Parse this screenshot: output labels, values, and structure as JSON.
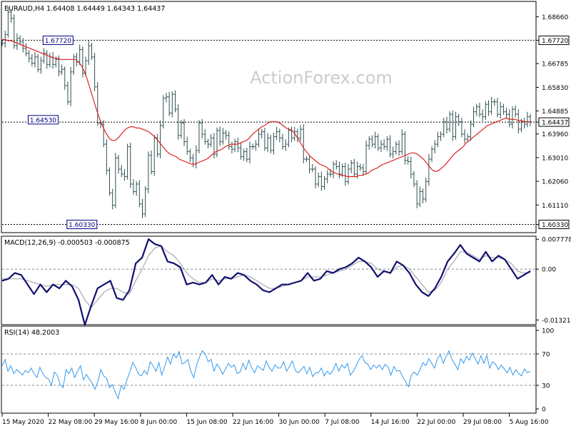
{
  "chart_data": [
    {
      "panel": "price",
      "type": "line",
      "title": "EURAUD,H4  1.64408 1.64449 1.64343 1.64437",
      "watermark": "ActionForex.com",
      "ylim": [
        1.6003,
        1.6925
      ],
      "y_ticks": [
        "1.68660",
        "1.67720",
        "1.66785",
        "1.65830",
        "1.64885",
        "1.64437",
        "1.63960",
        "1.63010",
        "1.62060",
        "1.61110",
        "1.60330"
      ],
      "highlight_ticks": [
        "1.67720",
        "1.64437",
        "1.60330"
      ],
      "levels": [
        {
          "label": "1.67720",
          "value": 1.6772,
          "style": "dotted"
        },
        {
          "label": "1.60330",
          "value": 1.6033,
          "style": "dotted"
        },
        {
          "label": "1.64437",
          "value": 1.64437,
          "style": "dotted"
        }
      ],
      "annotations": [
        {
          "label": "1.67720",
          "value": 1.6772,
          "bar_index": 24
        },
        {
          "label": "1.64530",
          "value": 1.6453,
          "bar_index": 19
        },
        {
          "label": "1.60330",
          "value": 1.6033,
          "bar_index": 32
        }
      ],
      "series": [
        {
          "kind": "close",
          "values": [
            1.676,
            1.6795,
            1.6885,
            1.686,
            1.675,
            1.678,
            1.6765,
            1.674,
            1.672,
            1.67,
            1.668,
            1.6705,
            1.6655,
            1.669,
            1.672,
            1.6675,
            1.6705,
            1.6675,
            1.6695,
            1.6645,
            1.6655,
            1.659,
            1.6525,
            1.6645,
            1.6705,
            1.6685,
            1.6735,
            1.664,
            1.669,
            1.675,
            1.6705,
            1.6585,
            1.644,
            1.6435,
            1.6355,
            1.625,
            1.616,
            1.611,
            1.63,
            1.6255,
            1.6235,
            1.6225,
            1.6345,
            1.6195,
            1.6165,
            1.6195,
            1.6115,
            1.6075,
            1.6175,
            1.631,
            1.6245,
            1.638,
            1.6315,
            1.643,
            1.654,
            1.6545,
            1.648,
            1.6555,
            1.6495,
            1.639,
            1.644,
            1.6365,
            1.6325,
            1.63,
            1.6275,
            1.633,
            1.644,
            1.6395,
            1.6365,
            1.6355,
            1.638,
            1.6315,
            1.641,
            1.6365,
            1.64,
            1.639,
            1.6345,
            1.6335,
            1.6365,
            1.634,
            1.6305,
            1.6325,
            1.6295,
            1.6345,
            1.6345,
            1.6355,
            1.6395,
            1.6405,
            1.634,
            1.638,
            1.633,
            1.6385,
            1.6405,
            1.638,
            1.6345,
            1.6355,
            1.641,
            1.638,
            1.6405,
            1.638,
            1.6415,
            1.6295,
            1.6295,
            1.6255,
            1.6255,
            1.6195,
            1.6225,
            1.6185,
            1.6215,
            1.6235,
            1.6235,
            1.6275,
            1.6265,
            1.6235,
            1.6265,
            1.6205,
            1.6255,
            1.628,
            1.6235,
            1.6265,
            1.626,
            1.6245,
            1.635,
            1.6375,
            1.6355,
            1.6385,
            1.634,
            1.6355,
            1.6345,
            1.6375,
            1.6315,
            1.6325,
            1.6355,
            1.6325,
            1.6395,
            1.629,
            1.6285,
            1.6235,
            1.6195,
            1.6115,
            1.6165,
            1.6135,
            1.6205,
            1.6295,
            1.6335,
            1.6355,
            1.6385,
            1.6395,
            1.6445,
            1.6415,
            1.6475,
            1.6385,
            1.6465,
            1.6445,
            1.6395,
            1.6375,
            1.6385,
            1.6435,
            1.6485,
            1.6505,
            1.6475,
            1.6465,
            1.6515,
            1.6485,
            1.6525,
            1.6525,
            1.6475,
            1.6505,
            1.6485,
            1.6475,
            1.6435,
            1.6495,
            1.6475,
            1.6415,
            1.6445,
            1.6435,
            1.6465,
            1.6445
          ]
        },
        {
          "kind": "moving-average",
          "color": "#dd2222",
          "values": [
            1.6775,
            1.6775,
            1.677,
            1.677,
            1.6765,
            1.676,
            1.6755,
            1.675,
            1.6745,
            1.674,
            1.6735,
            1.673,
            1.6725,
            1.672,
            1.6715,
            1.671,
            1.6705,
            1.67,
            1.67,
            1.6695,
            1.6695,
            1.6695,
            1.6695,
            1.6695,
            1.6695,
            1.6685,
            1.667,
            1.6645,
            1.661,
            1.657,
            1.653,
            1.649,
            1.6455,
            1.6425,
            1.64,
            1.638,
            1.637,
            1.637,
            1.638,
            1.6395,
            1.641,
            1.642,
            1.6425,
            1.6425,
            1.642,
            1.642,
            1.6415,
            1.641,
            1.6405,
            1.6395,
            1.6385,
            1.637,
            1.6355,
            1.634,
            1.6325,
            1.6315,
            1.631,
            1.6305,
            1.6295,
            1.629,
            1.6285,
            1.628,
            1.6275,
            1.6275,
            1.628,
            1.6285,
            1.629,
            1.6295,
            1.6305,
            1.6315,
            1.6325,
            1.633,
            1.6335,
            1.6345,
            1.635,
            1.6355,
            1.6355,
            1.6355,
            1.636,
            1.6365,
            1.637,
            1.638,
            1.6395,
            1.6405,
            1.6415,
            1.6425,
            1.643,
            1.644,
            1.6445,
            1.6445,
            1.6445,
            1.644,
            1.643,
            1.642,
            1.6415,
            1.641,
            1.6395,
            1.6375,
            1.6355,
            1.6335,
            1.632,
            1.6305,
            1.6295,
            1.6285,
            1.6275,
            1.627,
            1.6265,
            1.6255,
            1.6245,
            1.624,
            1.6235,
            1.623,
            1.623,
            1.6225,
            1.6225,
            1.6225,
            1.6225,
            1.623,
            1.623,
            1.6235,
            1.624,
            1.625,
            1.6255,
            1.626,
            1.627,
            1.6275,
            1.628,
            1.6285,
            1.629,
            1.6295,
            1.63,
            1.6305,
            1.631,
            1.6315,
            1.632,
            1.632,
            1.6315,
            1.6305,
            1.6295,
            1.628,
            1.6265,
            1.625,
            1.6245,
            1.625,
            1.626,
            1.627,
            1.6285,
            1.63,
            1.6315,
            1.6325,
            1.6335,
            1.6345,
            1.636,
            1.637,
            1.638,
            1.639,
            1.64,
            1.641,
            1.642,
            1.643,
            1.6435,
            1.644,
            1.6445,
            1.645,
            1.6455,
            1.646,
            1.6455,
            1.6455,
            1.6455,
            1.645,
            1.645,
            1.6445,
            1.6445,
            1.6445
          ]
        }
      ]
    },
    {
      "panel": "macd",
      "type": "line",
      "title": "MACD(12,26,9) -0.000503 -0.000875",
      "ylim": [
        -0.01425,
        0.00838
      ],
      "y_ticks": [
        "0.007778",
        "0.00",
        "-0.01321"
      ],
      "series": [
        {
          "kind": "macd",
          "color": "#101070",
          "values": [
            -0.003,
            -0.0025,
            -0.001,
            -0.0015,
            -0.004,
            -0.0065,
            -0.004,
            -0.006,
            -0.004,
            -0.005,
            -0.003,
            -0.0045,
            -0.008,
            -0.0145,
            -0.0095,
            -0.005,
            -0.004,
            -0.003,
            -0.0075,
            -0.008,
            -0.0055,
            0.0015,
            0.003,
            0.0078,
            0.0065,
            0.006,
            0.002,
            0.0015,
            0.0005,
            -0.004,
            -0.0035,
            -0.004,
            -0.0035,
            -0.0015,
            -0.004,
            -0.002,
            -0.0025,
            -0.001,
            -0.0015,
            -0.003,
            -0.004,
            -0.0055,
            -0.006,
            -0.005,
            -0.004,
            -0.004,
            -0.0035,
            -0.003,
            -0.001,
            -0.003,
            -0.0025,
            -0.0005,
            -0.001,
            0,
            0.0005,
            0.0015,
            0.003,
            0.002,
            0.0005,
            -0.002,
            -0.0005,
            -0.001,
            0.002,
            0.001,
            -0.001,
            -0.004,
            -0.006,
            -0.007,
            -0.005,
            -0.002,
            0.002,
            0.004,
            0.0063,
            0.004,
            0.003,
            0.002,
            0.0045,
            0.002,
            0.0035,
            0.0025,
            0,
            -0.0025,
            -0.0015,
            -0.0005
          ]
        },
        {
          "kind": "signal",
          "color": "#9a9aa5",
          "values": [
            -0.0025,
            -0.0025,
            -0.0025,
            -0.0025,
            -0.003,
            -0.0035,
            -0.004,
            -0.0045,
            -0.004,
            -0.004,
            -0.004,
            -0.004,
            -0.005,
            -0.008,
            -0.01,
            -0.008,
            -0.006,
            -0.005,
            -0.005,
            -0.006,
            -0.0065,
            -0.003,
            0,
            0.0035,
            0.0055,
            0.006,
            0.0045,
            0.0035,
            0.0015,
            -0.001,
            -0.0025,
            -0.0035,
            -0.0035,
            -0.0025,
            -0.003,
            -0.0025,
            -0.0025,
            -0.002,
            -0.0015,
            -0.002,
            -0.003,
            -0.004,
            -0.005,
            -0.005,
            -0.0045,
            -0.004,
            -0.0035,
            -0.003,
            -0.002,
            -0.002,
            -0.002,
            -0.0015,
            -0.001,
            -0.0005,
            0,
            0.001,
            0.002,
            0.002,
            0.0015,
            0,
            -0.0005,
            -0.001,
            0.0005,
            0.001,
            0,
            -0.002,
            -0.004,
            -0.006,
            -0.0055,
            -0.0035,
            0,
            0.002,
            0.0045,
            0.0045,
            0.0035,
            0.0025,
            0.0035,
            0.003,
            0.003,
            0.0025,
            0.0015,
            -0.0005,
            -0.001,
            -0.0009
          ]
        }
      ]
    },
    {
      "panel": "rsi",
      "type": "line",
      "title": "RSI(14) 48.2003",
      "ylim": [
        0,
        100
      ],
      "y_ticks": [
        "100",
        "70",
        "30",
        "0"
      ],
      "levels": [
        {
          "value": 70
        },
        {
          "value": 30
        }
      ],
      "series": [
        {
          "kind": "rsi",
          "color": "#3399ee",
          "values": [
            55,
            63,
            48,
            55,
            45,
            50,
            47,
            43,
            49,
            46,
            52,
            45,
            40,
            53,
            45,
            40,
            38,
            30,
            47,
            43,
            31,
            27,
            50,
            45,
            52,
            40,
            48,
            55,
            37,
            44,
            38,
            33,
            25,
            35,
            50,
            42,
            39,
            27,
            31,
            21,
            13,
            30,
            25,
            37,
            47,
            59,
            53,
            44,
            42,
            49,
            44,
            60,
            55,
            48,
            59,
            43,
            54,
            66,
            57,
            70,
            65,
            73,
            57,
            59,
            63,
            48,
            40,
            56,
            66,
            74,
            70,
            60,
            63,
            48,
            57,
            52,
            44,
            51,
            58,
            53,
            56,
            45,
            47,
            58,
            50,
            62,
            52,
            46,
            55,
            52,
            49,
            61,
            53,
            48,
            56,
            52,
            52,
            60,
            48,
            54,
            61,
            49,
            46,
            50,
            54,
            45,
            53,
            41,
            46,
            46,
            52,
            42,
            48,
            44,
            49,
            58,
            48,
            56,
            52,
            58,
            43,
            48,
            55,
            63,
            68,
            59,
            57,
            50,
            56,
            52,
            56,
            50,
            57,
            53,
            43,
            54,
            48,
            49,
            41,
            35,
            28,
            43,
            47,
            43,
            50,
            59,
            55,
            64,
            58,
            52,
            64,
            69,
            58,
            67,
            74,
            63,
            57,
            50,
            64,
            58,
            67,
            62,
            71,
            64,
            57,
            68,
            58,
            68,
            52,
            60,
            57,
            50,
            56,
            51,
            46,
            53,
            43,
            50,
            45,
            42,
            51,
            46,
            48
          ]
        }
      ]
    },
    {
      "panel": "time-axis",
      "type": "line",
      "x_ticks": [
        "15 May 2020",
        "22 May 08:00",
        "29 May 16:00",
        "8 Jun 00:00",
        "15 Jun 08:00",
        "22 Jun 16:00",
        "30 Jun 00:00",
        "7 Jul 08:00",
        "14 Jul 16:00",
        "22 Jul 00:00",
        "29 Jul 08:00",
        "5 Aug 16:00"
      ]
    }
  ]
}
